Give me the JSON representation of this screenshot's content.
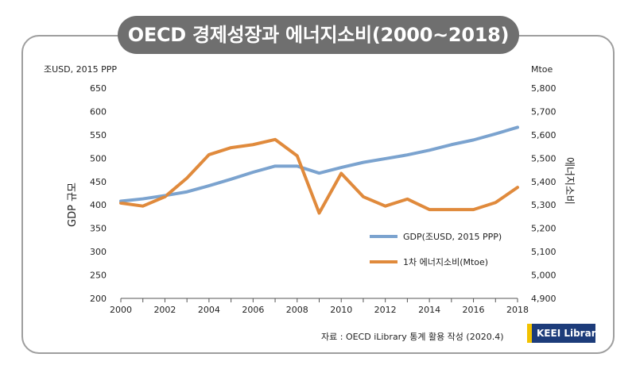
{
  "title": "OECD 경제성장과 에너지소비(2000~2018)",
  "source_note": "자료 : OECD iLibrary 통계 활용 작성 (2020.4)",
  "brand_badge": "KEEI Library",
  "colors": {
    "gdp": "#7ba3cf",
    "energy": "#e08a3c",
    "title_bg": "#6f6f6f",
    "badge_bg": "#1d3c7a",
    "badge_accent": "#f2c200"
  },
  "chart_data": {
    "type": "line",
    "x": [
      2000,
      2001,
      2002,
      2003,
      2004,
      2005,
      2006,
      2007,
      2008,
      2009,
      2010,
      2011,
      2012,
      2013,
      2014,
      2015,
      2016,
      2017,
      2018
    ],
    "xticks": [
      "2000",
      "2002",
      "2004",
      "2006",
      "2008",
      "2010",
      "2012",
      "2014",
      "2016",
      "2018"
    ],
    "left_axis": {
      "unit": "조USD, 2015 PPP",
      "label": "GDP 규모",
      "ylim": [
        200,
        650
      ],
      "ticks": [
        "200",
        "250",
        "300",
        "350",
        "400",
        "450",
        "500",
        "550",
        "600",
        "650"
      ]
    },
    "right_axis": {
      "unit": "Mtoe",
      "label": "에너지소비",
      "ylim": [
        4900,
        5800
      ],
      "ticks": [
        "4,900",
        "5,000",
        "5,100",
        "5,200",
        "5,300",
        "5,400",
        "5,500",
        "5,600",
        "5,700",
        "5,800"
      ]
    },
    "series": [
      {
        "name": "GDP(조USD, 2015 PPP)",
        "axis": "left",
        "values": [
          408,
          413,
          420,
          428,
          441,
          455,
          470,
          483,
          483,
          468,
          480,
          491,
          499,
          507,
          517,
          529,
          539,
          552,
          566
        ]
      },
      {
        "name": "1차 에너지소비(Mtoe)",
        "axis": "right",
        "values": [
          5308,
          5295,
          5335,
          5415,
          5515,
          5545,
          5558,
          5580,
          5510,
          5265,
          5435,
          5335,
          5295,
          5325,
          5280,
          5280,
          5280,
          5310,
          5375
        ]
      }
    ],
    "legend_position": "right-middle"
  }
}
